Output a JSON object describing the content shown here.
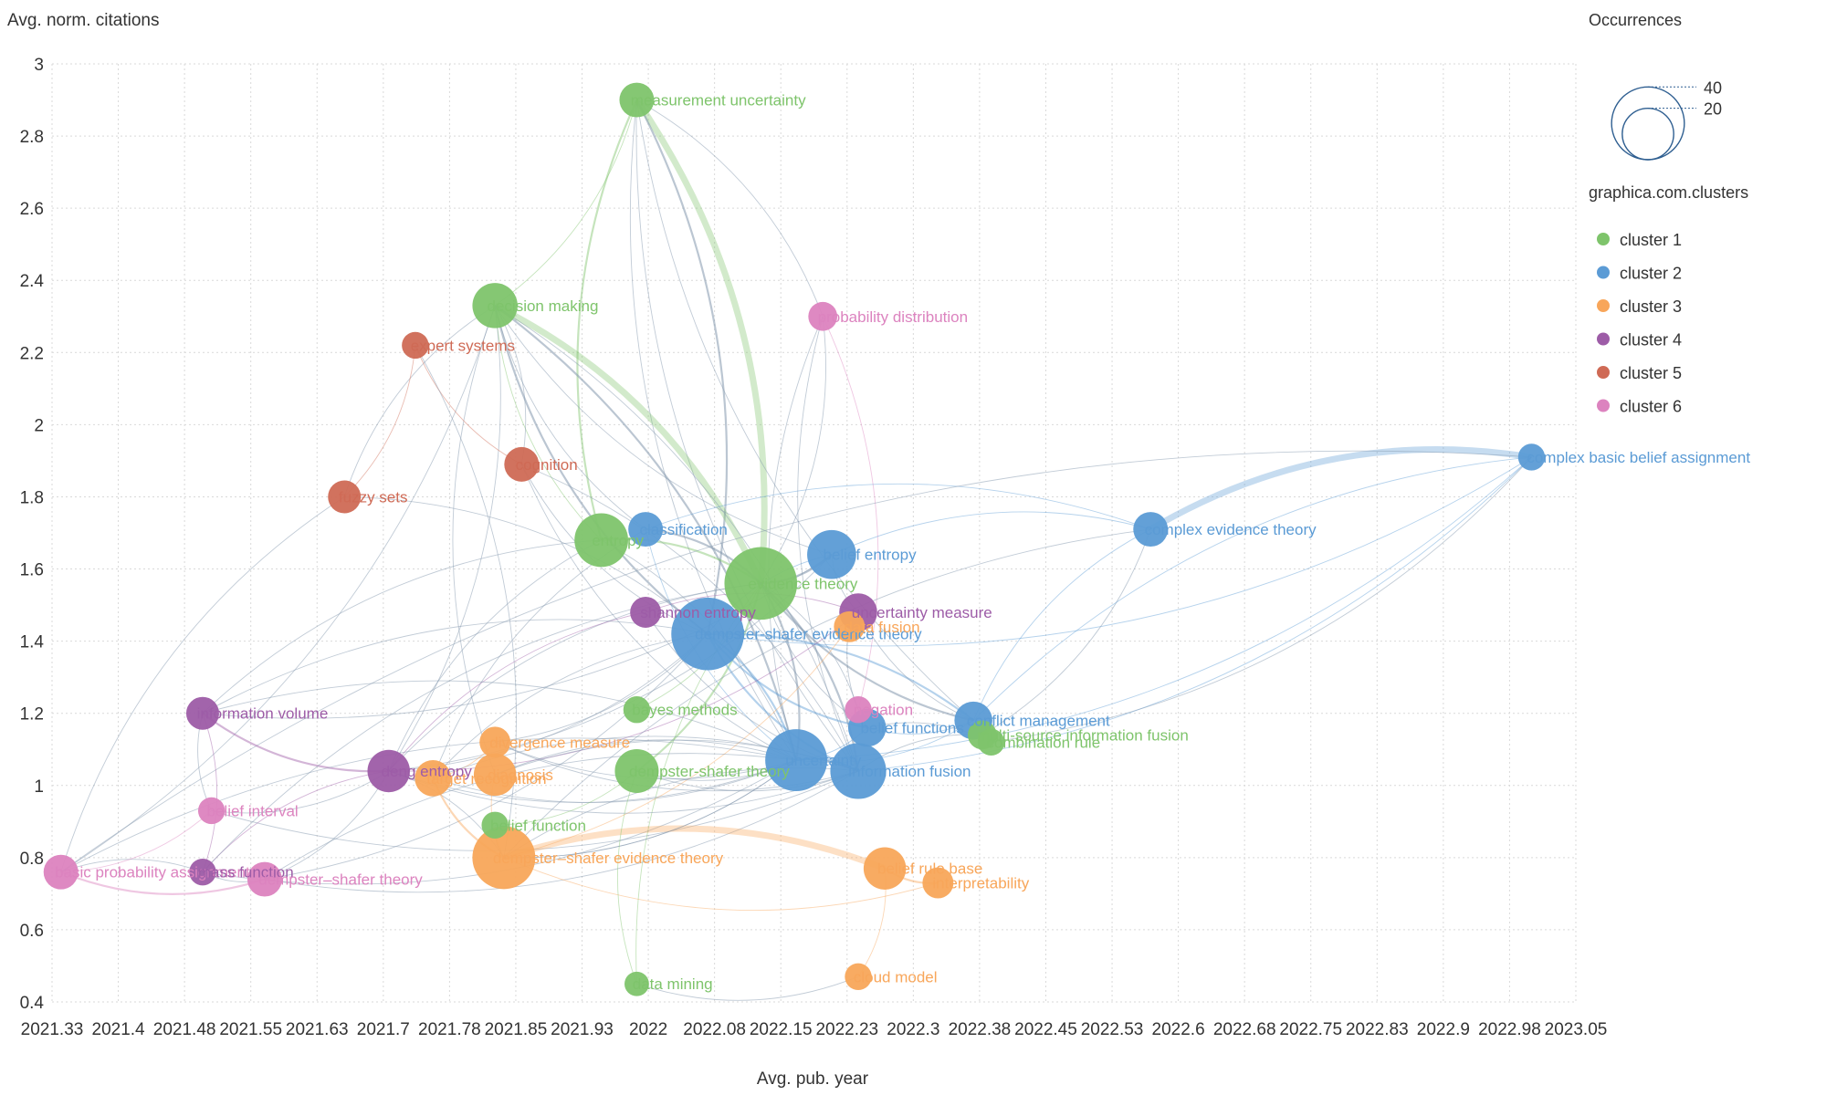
{
  "chart_data": {
    "type": "scatter",
    "title": "",
    "xlabel": "Avg. pub. year",
    "ylabel": "Avg. norm. citations",
    "xlim": [
      2021.33,
      2023.05
    ],
    "ylim": [
      0.4,
      3.0
    ],
    "x_ticks": [
      "2021.33",
      "2021.4",
      "2021.48",
      "2021.55",
      "2021.63",
      "2021.7",
      "2021.78",
      "2021.85",
      "2021.93",
      "2022",
      "2022.08",
      "2022.15",
      "2022.23",
      "2022.3",
      "2022.38",
      "2022.45",
      "2022.53",
      "2022.6",
      "2022.68",
      "2022.75",
      "2022.83",
      "2022.9",
      "2022.98",
      "2023.05"
    ],
    "y_ticks": [
      "0.4",
      "0.6",
      "0.8",
      "1",
      "1.2",
      "1.4",
      "1.6",
      "1.8",
      "2",
      "2.2",
      "2.4",
      "2.6",
      "2.8",
      "3"
    ],
    "grid": true,
    "size_legend": {
      "title": "Occurrences",
      "values": [
        40,
        20
      ]
    },
    "color_legend_title": "graphica.com.clusters",
    "clusters": [
      {
        "id": 1,
        "name": "cluster 1",
        "color": "#7ec46b"
      },
      {
        "id": 2,
        "name": "cluster 2",
        "color": "#5b9bd5"
      },
      {
        "id": 3,
        "name": "cluster 3",
        "color": "#f8a65a"
      },
      {
        "id": 4,
        "name": "cluster 4",
        "color": "#9d5ca7"
      },
      {
        "id": 5,
        "name": "cluster 5",
        "color": "#cf6a55"
      },
      {
        "id": 6,
        "name": "cluster 6",
        "color": "#dc83bf"
      }
    ],
    "nodes": [
      {
        "id": "measurement uncertainty",
        "x": 2021.99,
        "y": 2.9,
        "occ": 10,
        "cluster": 1
      },
      {
        "id": "decision making",
        "x": 2021.83,
        "y": 2.33,
        "occ": 17,
        "cluster": 1
      },
      {
        "id": "probability distribution",
        "x": 2022.2,
        "y": 2.3,
        "occ": 7,
        "cluster": 6
      },
      {
        "id": "expert systems",
        "x": 2021.74,
        "y": 2.22,
        "occ": 6,
        "cluster": 5
      },
      {
        "id": "cognition",
        "x": 2021.86,
        "y": 1.89,
        "occ": 10,
        "cluster": 5
      },
      {
        "id": "fuzzy sets",
        "x": 2021.66,
        "y": 1.8,
        "occ": 9,
        "cluster": 5
      },
      {
        "id": "entropy",
        "x": 2021.95,
        "y": 1.68,
        "occ": 24,
        "cluster": 1
      },
      {
        "id": "classification",
        "x": 2022.0,
        "y": 1.71,
        "occ": 10,
        "cluster": 2
      },
      {
        "id": "evidence theory",
        "x": 2022.13,
        "y": 1.56,
        "occ": 44,
        "cluster": 1
      },
      {
        "id": "belief entropy",
        "x": 2022.21,
        "y": 1.64,
        "occ": 20,
        "cluster": 2
      },
      {
        "id": "shannon entropy",
        "x": 2022.0,
        "y": 1.48,
        "occ": 8,
        "cluster": 4
      },
      {
        "id": "dempster-shafer evidence theory",
        "x": 2022.07,
        "y": 1.42,
        "occ": 44,
        "cluster": 2
      },
      {
        "id": "uncertainty measure",
        "x": 2022.24,
        "y": 1.48,
        "occ": 12,
        "cluster": 4
      },
      {
        "id": "data fusion",
        "x": 2022.23,
        "y": 1.44,
        "occ": 8,
        "cluster": 3
      },
      {
        "id": "complex evidence theory",
        "x": 2022.57,
        "y": 1.71,
        "occ": 10,
        "cluster": 2
      },
      {
        "id": "complex basic belief assignment",
        "x": 2023.0,
        "y": 1.91,
        "occ": 6,
        "cluster": 2
      },
      {
        "id": "information volume",
        "x": 2021.5,
        "y": 1.2,
        "occ": 9,
        "cluster": 4
      },
      {
        "id": "divergence measure",
        "x": 2021.83,
        "y": 1.12,
        "occ": 8,
        "cluster": 3
      },
      {
        "id": "deng entropy",
        "x": 2021.71,
        "y": 1.04,
        "occ": 15,
        "cluster": 4
      },
      {
        "id": "target recognition",
        "x": 2021.76,
        "y": 1.02,
        "occ": 11,
        "cluster": 3
      },
      {
        "id": "diagnosis",
        "x": 2021.83,
        "y": 1.03,
        "occ": 15,
        "cluster": 3
      },
      {
        "id": "bayes methods",
        "x": 2021.99,
        "y": 1.21,
        "occ": 6,
        "cluster": 1
      },
      {
        "id": "dempster-shafer theory",
        "x": 2021.99,
        "y": 1.04,
        "occ": 16,
        "cluster": 1
      },
      {
        "id": "uncertainty",
        "x": 2022.17,
        "y": 1.07,
        "occ": 32,
        "cluster": 2
      },
      {
        "id": "information fusion",
        "x": 2022.24,
        "y": 1.04,
        "occ": 26,
        "cluster": 2
      },
      {
        "id": "belief functions",
        "x": 2022.25,
        "y": 1.16,
        "occ": 12,
        "cluster": 2
      },
      {
        "id": "negation",
        "x": 2022.24,
        "y": 1.21,
        "occ": 6,
        "cluster": 6
      },
      {
        "id": "conflict management",
        "x": 2022.37,
        "y": 1.18,
        "occ": 12,
        "cluster": 2
      },
      {
        "id": "multi-source information fusion",
        "x": 2022.38,
        "y": 1.14,
        "occ": 7,
        "cluster": 1
      },
      {
        "id": "combination rule",
        "x": 2022.39,
        "y": 1.12,
        "occ": 6,
        "cluster": 1
      },
      {
        "id": "belief interval",
        "x": 2021.51,
        "y": 0.93,
        "occ": 6,
        "cluster": 6
      },
      {
        "id": "belief function",
        "x": 2021.83,
        "y": 0.89,
        "occ": 6,
        "cluster": 1
      },
      {
        "id": "basic probability assignment",
        "x": 2021.34,
        "y": 0.76,
        "occ": 10,
        "cluster": 6
      },
      {
        "id": "mass function",
        "x": 2021.5,
        "y": 0.76,
        "occ": 6,
        "cluster": 4
      },
      {
        "id": "dempster–shafer theory",
        "x": 2021.57,
        "y": 0.74,
        "occ": 10,
        "cluster": 6
      },
      {
        "id": "dempster–shafer evidence theory",
        "x": 2021.84,
        "y": 0.8,
        "occ": 33,
        "cluster": 3
      },
      {
        "id": "belief rule base",
        "x": 2022.27,
        "y": 0.77,
        "occ": 15,
        "cluster": 3
      },
      {
        "id": "interpretability",
        "x": 2022.33,
        "y": 0.73,
        "occ": 8,
        "cluster": 3
      },
      {
        "id": "data mining",
        "x": 2021.99,
        "y": 0.45,
        "occ": 5,
        "cluster": 1
      },
      {
        "id": "cloud model",
        "x": 2022.24,
        "y": 0.47,
        "occ": 6,
        "cluster": 3
      }
    ],
    "edges": [
      [
        "measurement uncertainty",
        "evidence theory",
        3
      ],
      [
        "measurement uncertainty",
        "entropy",
        2
      ],
      [
        "measurement uncertainty",
        "dempster-shafer evidence theory",
        2
      ],
      [
        "measurement uncertainty",
        "uncertainty",
        1
      ],
      [
        "measurement uncertainty",
        "decision making",
        1
      ],
      [
        "measurement uncertainty",
        "conflict management",
        1
      ],
      [
        "measurement uncertainty",
        "probability distribution",
        1
      ],
      [
        "measurement uncertainty",
        "information fusion",
        1
      ],
      [
        "decision making",
        "evidence theory",
        3
      ],
      [
        "decision making",
        "dempster-shafer evidence theory",
        2
      ],
      [
        "decision making",
        "uncertainty",
        2
      ],
      [
        "decision making",
        "entropy",
        1
      ],
      [
        "decision making",
        "information fusion",
        1
      ],
      [
        "decision making",
        "diagnosis",
        1
      ],
      [
        "decision making",
        "deng entropy",
        1
      ],
      [
        "decision making",
        "fuzzy sets",
        1
      ],
      [
        "decision making",
        "cognition",
        1
      ],
      [
        "decision making",
        "classification",
        1
      ],
      [
        "decision making",
        "basic probability assignment",
        1
      ],
      [
        "decision making",
        "belief entropy",
        1
      ],
      [
        "probability distribution",
        "evidence theory",
        1
      ],
      [
        "probability distribution",
        "uncertainty",
        1
      ],
      [
        "probability distribution",
        "negation",
        1
      ],
      [
        "probability distribution",
        "information fusion",
        1
      ],
      [
        "expert systems",
        "fuzzy sets",
        1
      ],
      [
        "expert systems",
        "cognition",
        1
      ],
      [
        "expert systems",
        "dempster–shafer evidence theory",
        1
      ],
      [
        "cognition",
        "uncertainty",
        1
      ],
      [
        "cognition",
        "information fusion",
        1
      ],
      [
        "cognition",
        "dempster-shafer evidence theory",
        1
      ],
      [
        "fuzzy sets",
        "dempster-shafer evidence theory",
        1
      ],
      [
        "fuzzy sets",
        "basic probability assignment",
        1
      ],
      [
        "entropy",
        "evidence theory",
        2
      ],
      [
        "entropy",
        "deng entropy",
        1
      ],
      [
        "entropy",
        "uncertainty",
        1
      ],
      [
        "entropy",
        "information volume",
        1
      ],
      [
        "classification",
        "evidence theory",
        2
      ],
      [
        "classification",
        "uncertainty",
        1
      ],
      [
        "classification",
        "complex evidence theory",
        1
      ],
      [
        "classification",
        "target recognition",
        1
      ],
      [
        "evidence theory",
        "uncertainty",
        2
      ],
      [
        "evidence theory",
        "belief entropy",
        2
      ],
      [
        "evidence theory",
        "information fusion",
        2
      ],
      [
        "evidence theory",
        "conflict management",
        2
      ],
      [
        "evidence theory",
        "dempster-shafer theory",
        2
      ],
      [
        "evidence theory",
        "deng entropy",
        1
      ],
      [
        "evidence theory",
        "bayes methods",
        1
      ],
      [
        "evidence theory",
        "data mining",
        1
      ],
      [
        "evidence theory",
        "negation",
        1
      ],
      [
        "evidence theory",
        "belief functions",
        1
      ],
      [
        "belief entropy",
        "deng entropy",
        1
      ],
      [
        "belief entropy",
        "uncertainty measure",
        1
      ],
      [
        "belief entropy",
        "complex evidence theory",
        1
      ],
      [
        "belief entropy",
        "dempster-shafer evidence theory",
        1
      ],
      [
        "belief entropy",
        "information volume",
        1
      ],
      [
        "shannon entropy",
        "deng entropy",
        1
      ],
      [
        "shannon entropy",
        "uncertainty measure",
        1
      ],
      [
        "shannon entropy",
        "information fusion",
        1
      ],
      [
        "dempster-shafer evidence theory",
        "uncertainty",
        2
      ],
      [
        "dempster-shafer evidence theory",
        "information fusion",
        2
      ],
      [
        "dempster-shafer evidence theory",
        "conflict management",
        2
      ],
      [
        "dempster-shafer evidence theory",
        "belief functions",
        2
      ],
      [
        "dempster-shafer evidence theory",
        "deng entropy",
        1
      ],
      [
        "dempster-shafer evidence theory",
        "information volume",
        1
      ],
      [
        "dempster-shafer evidence theory",
        "dempster–shafer theory",
        1
      ],
      [
        "dempster-shafer evidence theory",
        "complex basic belief assignment",
        1
      ],
      [
        "dempster-shafer evidence theory",
        "divergence measure",
        1
      ],
      [
        "dempster-shafer evidence theory",
        "target recognition",
        1
      ],
      [
        "uncertainty measure",
        "deng entropy",
        1
      ],
      [
        "uncertainty measure",
        "conflict management",
        1
      ],
      [
        "data fusion",
        "dempster–shafer evidence theory",
        1
      ],
      [
        "data fusion",
        "belief functions",
        1
      ],
      [
        "complex evidence theory",
        "complex basic belief assignment",
        3
      ],
      [
        "complex evidence theory",
        "conflict management",
        1
      ],
      [
        "complex evidence theory",
        "multi-source information fusion",
        1
      ],
      [
        "complex evidence theory",
        "dempster–shafer evidence theory",
        1
      ],
      [
        "complex basic belief assignment",
        "information fusion",
        1
      ],
      [
        "complex basic belief assignment",
        "conflict management",
        1
      ],
      [
        "complex basic belief assignment",
        "uncertainty",
        1
      ],
      [
        "complex basic belief assignment",
        "basic probability assignment",
        1
      ],
      [
        "complex basic belief assignment",
        "combination rule",
        1
      ],
      [
        "information volume",
        "deng entropy",
        2
      ],
      [
        "information volume",
        "mass function",
        1
      ],
      [
        "information volume",
        "belief interval",
        1
      ],
      [
        "information volume",
        "uncertainty",
        1
      ],
      [
        "deng entropy",
        "mass function",
        1
      ],
      [
        "deng entropy",
        "dempster–shafer theory",
        1
      ],
      [
        "deng entropy",
        "uncertainty",
        1
      ],
      [
        "deng entropy",
        "belief interval",
        1
      ],
      [
        "deng entropy",
        "information fusion",
        1
      ],
      [
        "deng entropy",
        "dempster–shafer evidence theory",
        1
      ],
      [
        "divergence measure",
        "information fusion",
        1
      ],
      [
        "divergence measure",
        "target recognition",
        1
      ],
      [
        "divergence measure",
        "uncertainty",
        1
      ],
      [
        "target recognition",
        "information fusion",
        1
      ],
      [
        "target recognition",
        "uncertainty",
        1
      ],
      [
        "diagnosis",
        "uncertainty",
        1
      ],
      [
        "diagnosis",
        "dempster–shafer evidence theory",
        1
      ],
      [
        "diagnosis",
        "information fusion",
        1
      ],
      [
        "dempster-shafer theory",
        "uncertainty",
        1
      ],
      [
        "dempster-shafer theory",
        "belief function",
        1
      ],
      [
        "dempster-shafer theory",
        "information fusion",
        1
      ],
      [
        "uncertainty",
        "information fusion",
        2
      ],
      [
        "uncertainty",
        "belief functions",
        1
      ],
      [
        "uncertainty",
        "mass function",
        1
      ],
      [
        "uncertainty",
        "dempster–shafer theory",
        1
      ],
      [
        "uncertainty",
        "dempster–shafer evidence theory",
        1
      ],
      [
        "uncertainty",
        "conflict management",
        1
      ],
      [
        "information fusion",
        "belief interval",
        1
      ],
      [
        "information fusion",
        "dempster–shafer evidence theory",
        1
      ],
      [
        "information fusion",
        "multi-source information fusion",
        1
      ],
      [
        "belief functions",
        "conflict management",
        1
      ],
      [
        "belief functions",
        "combination rule",
        1
      ],
      [
        "basic probability assignment",
        "dempster–shafer theory",
        2
      ],
      [
        "basic probability assignment",
        "mass function",
        1
      ],
      [
        "basic probability assignment",
        "belief interval",
        1
      ],
      [
        "basic probability assignment",
        "uncertainty",
        1
      ],
      [
        "mass function",
        "dempster–shafer theory",
        1
      ],
      [
        "mass function",
        "evidence theory",
        1
      ],
      [
        "dempster–shafer theory",
        "information fusion",
        1
      ],
      [
        "dempster–shafer evidence theory",
        "belief rule base",
        3
      ],
      [
        "dempster–shafer evidence theory",
        "interpretability",
        1
      ],
      [
        "dempster–shafer evidence theory",
        "belief function",
        1
      ],
      [
        "dempster–shafer evidence theory",
        "uncertainty",
        1
      ],
      [
        "dempster–shafer evidence theory",
        "target recognition",
        2
      ],
      [
        "belief rule base",
        "interpretability",
        2
      ],
      [
        "belief rule base",
        "cloud model",
        1
      ],
      [
        "data mining",
        "cloud model",
        1
      ],
      [
        "data mining",
        "dempster-shafer theory",
        1
      ]
    ]
  }
}
